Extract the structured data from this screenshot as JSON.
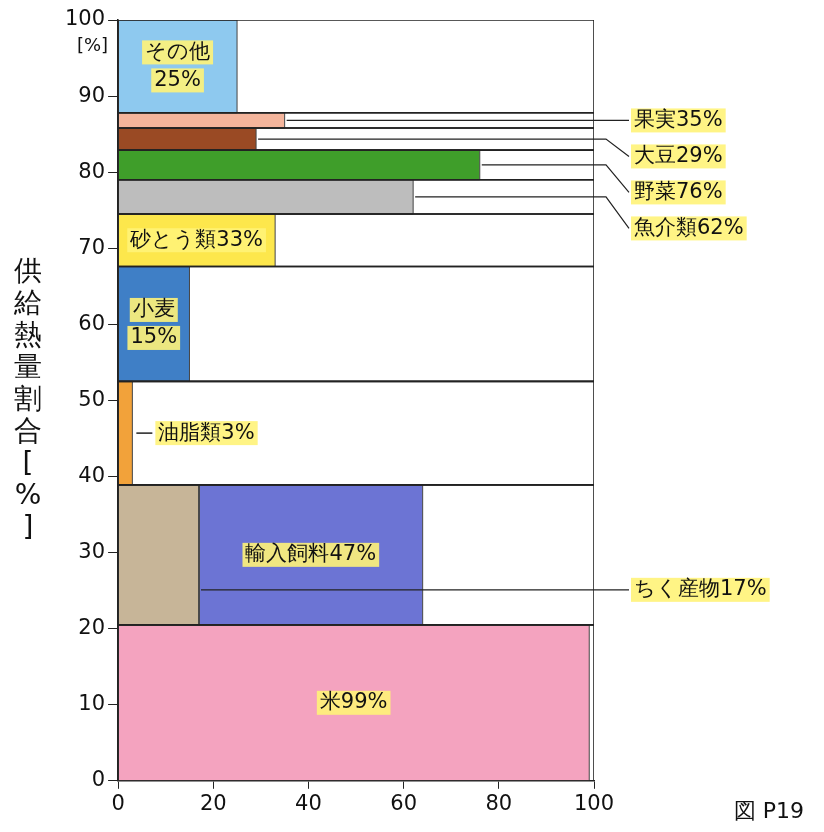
{
  "chart_data": {
    "type": "bar",
    "orientation": "horizontal",
    "stacked": true,
    "data_labels": true,
    "grid": false,
    "ylabel": "供給熱量割合[%]",
    "annotations": [
      "[%]",
      "図 P19"
    ],
    "xlim": [
      0,
      100
    ],
    "xticks": [
      0,
      20,
      40,
      60,
      80,
      100
    ],
    "ylim": [
      0,
      100
    ],
    "yticks": [
      0,
      10,
      20,
      30,
      40,
      50,
      60,
      70,
      80,
      90,
      100
    ],
    "bands": [
      {
        "share": 20.5,
        "segments": [
          {
            "name": "米",
            "value": 99,
            "value_label": "99%",
            "color": "#f4a3bf"
          }
        ]
      },
      {
        "share": 18.4,
        "segments": [
          {
            "name": "ちく産物",
            "value": 17,
            "value_label": "17%",
            "color": "#c7b598"
          },
          {
            "name": "輸入飼料",
            "value": 47,
            "value_label": "47%",
            "color": "#6c74d4"
          }
        ]
      },
      {
        "share": 13.6,
        "segments": [
          {
            "name": "油脂類",
            "value": 3,
            "value_label": "3%",
            "color": "#f2a23a"
          }
        ]
      },
      {
        "share": 15.1,
        "segments": [
          {
            "name": "小麦",
            "value": 15,
            "value_label": "15%",
            "color": "#3f7fc6"
          }
        ]
      },
      {
        "share": 6.9,
        "segments": [
          {
            "name": "砂とう類",
            "value": 33,
            "value_label": "33%",
            "color": "#fde74c"
          }
        ]
      },
      {
        "share": 4.5,
        "segments": [
          {
            "name": "魚介類",
            "value": 62,
            "value_label": "62%",
            "color": "#bdbdbd"
          }
        ]
      },
      {
        "share": 3.9,
        "segments": [
          {
            "name": "野菜",
            "value": 76,
            "value_label": "76%",
            "color": "#3f9e2a"
          }
        ]
      },
      {
        "share": 2.9,
        "segments": [
          {
            "name": "大豆",
            "value": 29,
            "value_label": "29%",
            "color": "#9a4a24"
          }
        ]
      },
      {
        "share": 2.0,
        "segments": [
          {
            "name": "果実",
            "value": 35,
            "value_label": "35%",
            "color": "#f4b59c"
          }
        ]
      },
      {
        "share": 12.2,
        "segments": [
          {
            "name": "その他",
            "value": 25,
            "value_label": "25%",
            "color": "#8ec9ef"
          }
        ]
      }
    ]
  }
}
